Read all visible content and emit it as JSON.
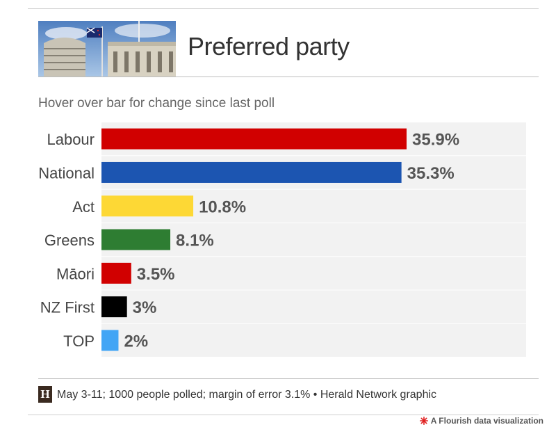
{
  "header": {
    "title": "Preferred party",
    "subtitle": "Hover over bar for change since last poll"
  },
  "chart_data": {
    "type": "bar",
    "orientation": "horizontal",
    "categories": [
      "Labour",
      "National",
      "Act",
      "Greens",
      "Māori",
      "NZ First",
      "TOP"
    ],
    "values": [
      35.9,
      35.3,
      10.8,
      8.1,
      3.5,
      3,
      2
    ],
    "value_labels": [
      "35.9%",
      "35.3%",
      "10.8%",
      "8.1%",
      "3.5%",
      "3%",
      "2%"
    ],
    "colors": [
      "#d10000",
      "#1c55b1",
      "#fdd835",
      "#2e7d32",
      "#d10000",
      "#000000",
      "#42a5f5"
    ],
    "title": "Preferred party",
    "subtitle": "Hover over bar for change since last poll",
    "xlim": [
      0,
      50
    ],
    "grid": false,
    "legend": "none"
  },
  "footer": {
    "logo_letter": "H",
    "source": "May 3-11; 1000 people polled; margin of error 3.1% • Herald Network graphic",
    "credit": "A Flourish data visualization"
  },
  "colors": {
    "row_background": "#f2f2f2",
    "text": "#333333",
    "flourish_accent": "#e02020"
  }
}
